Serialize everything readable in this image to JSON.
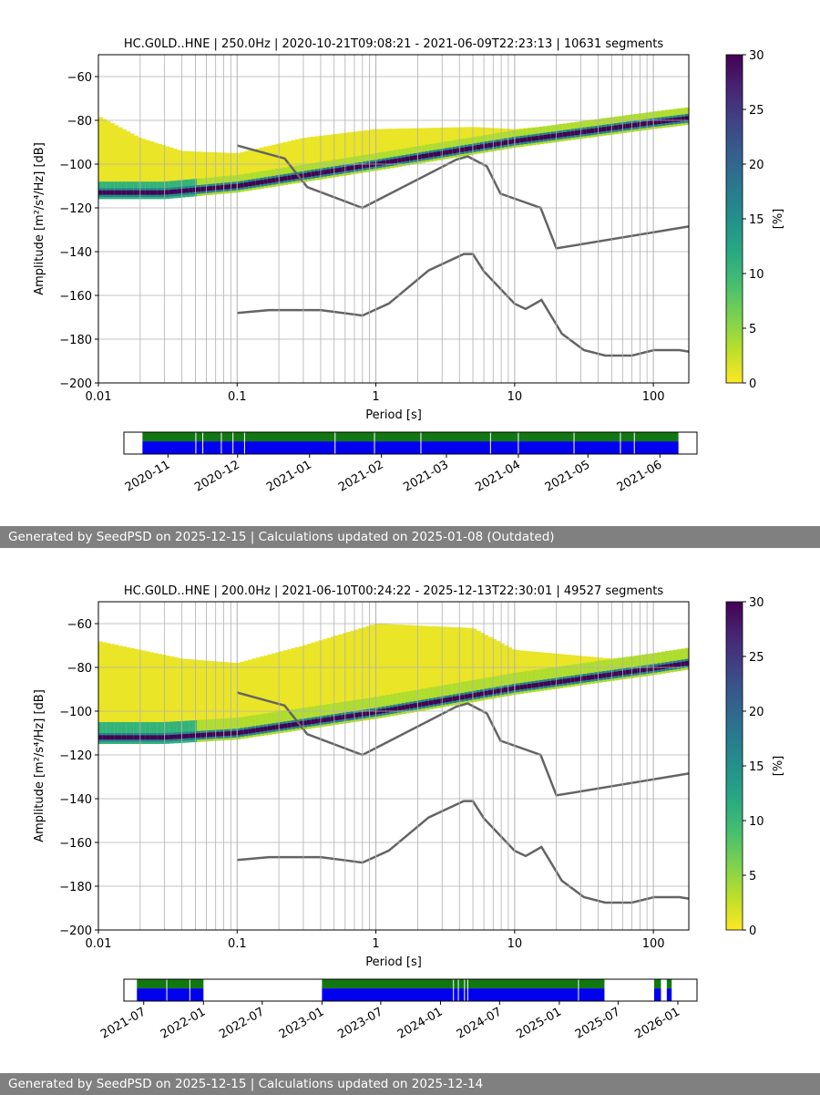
{
  "colors": {
    "reference_line": "#646464",
    "grid": "#b0b0b0",
    "availability_top": "#117711",
    "availability_bottom": "#0000ee",
    "footer_bg": "#808080"
  },
  "chart_data": [
    {
      "type": "heatmap",
      "title": "HC.G0LD..HNE | 250.0Hz | 2020-10-21T09:08:21 - 2021-06-09T22:23:13 | 10631 segments",
      "xlabel": "Period [s]",
      "ylabel": "Amplitude [m²/s⁴/Hz] [dB]",
      "xscale": "log",
      "xlim": [
        0.01,
        180
      ],
      "ylim": [
        -200,
        -50
      ],
      "xticks": [
        {
          "value": 0.01,
          "label": "0.01"
        },
        {
          "value": 0.1,
          "label": "0.1"
        },
        {
          "value": 1,
          "label": "1"
        },
        {
          "value": 10,
          "label": "10"
        },
        {
          "value": 100,
          "label": "100"
        }
      ],
      "yticks": [
        {
          "value": -60,
          "label": "−60"
        },
        {
          "value": -80,
          "label": "−80"
        },
        {
          "value": -100,
          "label": "−100"
        },
        {
          "value": -120,
          "label": "−120"
        },
        {
          "value": -140,
          "label": "−140"
        },
        {
          "value": -160,
          "label": "−160"
        },
        {
          "value": -180,
          "label": "−180"
        },
        {
          "value": -200,
          "label": "−200"
        }
      ],
      "colorbar": {
        "label": "[%]",
        "min": 0,
        "max": 30,
        "ticks": [
          "0",
          "5",
          "10",
          "15",
          "20",
          "25",
          "30"
        ]
      },
      "density": {
        "mode_line": [
          [
            0.03,
            -113
          ],
          [
            0.1,
            -110
          ],
          [
            1,
            -100
          ],
          [
            10,
            -89.5
          ],
          [
            100,
            -81
          ],
          [
            180,
            -79
          ]
        ],
        "band": [
          [
            0.01,
            -114,
            -78
          ],
          [
            0.02,
            -113,
            -88
          ],
          [
            0.04,
            -112,
            -94
          ],
          [
            0.1,
            -110,
            -95
          ],
          [
            0.3,
            -106,
            -88
          ],
          [
            1,
            -101,
            -84
          ],
          [
            5,
            -95,
            -83
          ],
          [
            10,
            -91,
            -84
          ],
          [
            50,
            -84,
            -80
          ],
          [
            180,
            -80,
            -74
          ]
        ],
        "spread_level": "moderate"
      },
      "nhnm": [
        [
          0.1,
          -91.5
        ],
        [
          0.22,
          -97.4
        ],
        [
          0.32,
          -110.5
        ],
        [
          0.8,
          -120
        ],
        [
          3.8,
          -97.9
        ],
        [
          4.6,
          -96.5
        ],
        [
          6.3,
          -101
        ],
        [
          7.9,
          -113.5
        ],
        [
          15.4,
          -120
        ],
        [
          20,
          -138.5
        ],
        [
          180,
          -128.5
        ]
      ],
      "nlnm": [
        [
          0.1,
          -168
        ],
        [
          0.17,
          -166.7
        ],
        [
          0.4,
          -166.7
        ],
        [
          0.8,
          -169.2
        ],
        [
          1.24,
          -163.7
        ],
        [
          2.4,
          -148.6
        ],
        [
          4.3,
          -141.1
        ],
        [
          5,
          -141.1
        ],
        [
          6,
          -149
        ],
        [
          10,
          -163.8
        ],
        [
          12,
          -166.2
        ],
        [
          15.6,
          -162.1
        ],
        [
          21.9,
          -177.5
        ],
        [
          31.6,
          -185
        ],
        [
          45,
          -187.5
        ],
        [
          70,
          -187.5
        ],
        [
          101,
          -185
        ],
        [
          154,
          -185
        ],
        [
          180,
          -185.7
        ]
      ],
      "availability": {
        "ticks": [
          "2020-11",
          "2020-12",
          "2021-01",
          "2021-02",
          "2021-03",
          "2021-04",
          "2021-05",
          "2021-06"
        ],
        "range_start": "2020-10-13",
        "range_end": "2021-06-17",
        "segments": [
          [
            "2020-10-21",
            "2021-06-09"
          ]
        ],
        "gaps": [
          "2020-11-13",
          "2020-11-16",
          "2020-11-24",
          "2020-11-29",
          "2020-12-04",
          "2021-01-12",
          "2021-01-29",
          "2021-02-18",
          "2021-03-20",
          "2021-04-01",
          "2021-04-25",
          "2021-05-15",
          "2021-05-21"
        ]
      },
      "footer": "Generated by SeedPSD on 2025-12-15 | Calculations updated on 2025-01-08 (Outdated)"
    },
    {
      "type": "heatmap",
      "title": "HC.G0LD..HNE | 200.0Hz | 2021-06-10T00:24:22 - 2025-12-13T22:30:01 | 49527 segments",
      "xlabel": "Period [s]",
      "ylabel": "Amplitude [m²/s⁴/Hz] [dB]",
      "xscale": "log",
      "xlim": [
        0.01,
        180
      ],
      "ylim": [
        -200,
        -50
      ],
      "xticks": [
        {
          "value": 0.01,
          "label": "0.01"
        },
        {
          "value": 0.1,
          "label": "0.1"
        },
        {
          "value": 1,
          "label": "1"
        },
        {
          "value": 10,
          "label": "10"
        },
        {
          "value": 100,
          "label": "100"
        }
      ],
      "yticks": [
        {
          "value": -60,
          "label": "−60"
        },
        {
          "value": -80,
          "label": "−80"
        },
        {
          "value": -100,
          "label": "−100"
        },
        {
          "value": -120,
          "label": "−120"
        },
        {
          "value": -140,
          "label": "−140"
        },
        {
          "value": -160,
          "label": "−160"
        },
        {
          "value": -180,
          "label": "−180"
        },
        {
          "value": -200,
          "label": "−200"
        }
      ],
      "colorbar": {
        "label": "[%]",
        "min": 0,
        "max": 30,
        "ticks": [
          "0",
          "5",
          "10",
          "15",
          "20",
          "25",
          "30"
        ]
      },
      "density": {
        "mode_line": [
          [
            0.03,
            -112
          ],
          [
            0.1,
            -110
          ],
          [
            1,
            -100.5
          ],
          [
            10,
            -89.5
          ],
          [
            100,
            -80.5
          ],
          [
            180,
            -78
          ]
        ],
        "band": [
          [
            0.01,
            -112,
            -68
          ],
          [
            0.02,
            -112,
            -72
          ],
          [
            0.04,
            -111,
            -76
          ],
          [
            0.1,
            -109,
            -78
          ],
          [
            0.3,
            -105,
            -70
          ],
          [
            1,
            -101,
            -60
          ],
          [
            5,
            -96,
            -62
          ],
          [
            10,
            -92,
            -72
          ],
          [
            50,
            -84,
            -76
          ],
          [
            180,
            -80,
            -72
          ]
        ],
        "spread_level": "wide"
      },
      "nhnm": [
        [
          0.1,
          -91.5
        ],
        [
          0.22,
          -97.4
        ],
        [
          0.32,
          -110.5
        ],
        [
          0.8,
          -120
        ],
        [
          3.8,
          -97.9
        ],
        [
          4.6,
          -96.5
        ],
        [
          6.3,
          -101
        ],
        [
          7.9,
          -113.5
        ],
        [
          15.4,
          -120
        ],
        [
          20,
          -138.5
        ],
        [
          180,
          -128.5
        ]
      ],
      "nlnm": [
        [
          0.1,
          -168
        ],
        [
          0.17,
          -166.7
        ],
        [
          0.4,
          -166.7
        ],
        [
          0.8,
          -169.2
        ],
        [
          1.24,
          -163.7
        ],
        [
          2.4,
          -148.6
        ],
        [
          4.3,
          -141.1
        ],
        [
          5,
          -141.1
        ],
        [
          6,
          -149
        ],
        [
          10,
          -163.8
        ],
        [
          12,
          -166.2
        ],
        [
          15.6,
          -162.1
        ],
        [
          21.9,
          -177.5
        ],
        [
          31.6,
          -185
        ],
        [
          45,
          -187.5
        ],
        [
          70,
          -187.5
        ],
        [
          101,
          -185
        ],
        [
          154,
          -185
        ],
        [
          180,
          -185.7
        ]
      ],
      "availability": {
        "ticks": [
          "2021-07",
          "2022-01",
          "2022-07",
          "2023-01",
          "2023-07",
          "2024-01",
          "2024-07",
          "2025-01",
          "2025-07",
          "2026-01"
        ],
        "range_start": "2021-05-01",
        "range_end": "2026-03-01",
        "segments": [
          [
            "2021-06-10",
            "2022-01-01"
          ],
          [
            "2023-01-01",
            "2025-05-20"
          ],
          [
            "2025-10-20",
            "2025-11-10"
          ],
          [
            "2025-11-28",
            "2025-12-13"
          ]
        ],
        "gaps": [
          "2021-09-10",
          "2021-11-20",
          "2024-02-10",
          "2024-02-25",
          "2024-03-15",
          "2024-03-25",
          "2025-03-01"
        ]
      },
      "footer": "Generated by SeedPSD on 2025-12-15 | Calculations updated on 2025-12-14"
    }
  ]
}
